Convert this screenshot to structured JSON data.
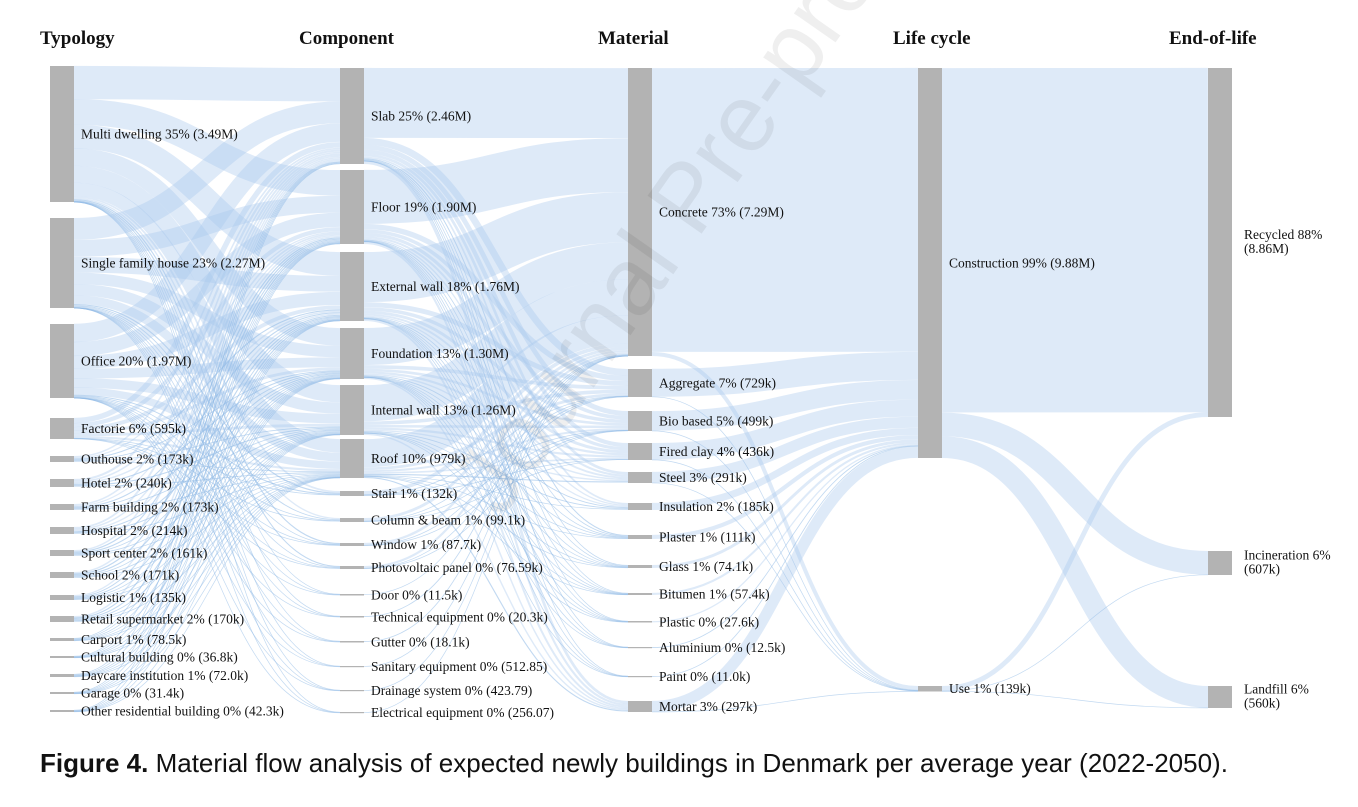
{
  "caption": {
    "label": "Figure 4.",
    "text": " Material flow analysis of expected newly buildings in Denmark per average year (2022-2050)."
  },
  "watermark": "Journal Pre-proof",
  "chart_data": {
    "type": "sankey",
    "columns": [
      {
        "header": "Typology",
        "nodes": [
          {
            "label": "Multi dwelling 35% (3.49M)",
            "value": 3490000
          },
          {
            "label": "Single family house 23% (2.27M)",
            "value": 2270000
          },
          {
            "label": "Office 20% (1.97M)",
            "value": 1970000
          },
          {
            "label": "Factorie 6% (595k)",
            "value": 595000
          },
          {
            "label": "Outhouse 2% (173k)",
            "value": 173000
          },
          {
            "label": "Hotel 2% (240k)",
            "value": 240000
          },
          {
            "label": "Farm building 2% (173k)",
            "value": 173000
          },
          {
            "label": "Hospital 2% (214k)",
            "value": 214000
          },
          {
            "label": "Sport center 2% (161k)",
            "value": 161000
          },
          {
            "label": "School 2% (171k)",
            "value": 171000
          },
          {
            "label": "Logistic 1% (135k)",
            "value": 135000
          },
          {
            "label": "Retail supermarket 2% (170k)",
            "value": 170000
          },
          {
            "label": "Carport 1% (78.5k)",
            "value": 78500
          },
          {
            "label": "Cultural building 0% (36.8k)",
            "value": 36800
          },
          {
            "label": "Daycare institution 1% (72.0k)",
            "value": 72000
          },
          {
            "label": "Garage 0% (31.4k)",
            "value": 31400
          },
          {
            "label": "Other residential building 0% (42.3k)",
            "value": 42300
          }
        ]
      },
      {
        "header": "Component",
        "nodes": [
          {
            "label": "Slab 25% (2.46M)",
            "value": 2460000
          },
          {
            "label": "Floor 19% (1.90M)",
            "value": 1900000
          },
          {
            "label": "External wall 18% (1.76M)",
            "value": 1760000
          },
          {
            "label": "Foundation 13% (1.30M)",
            "value": 1300000
          },
          {
            "label": "Internal wall 13% (1.26M)",
            "value": 1260000
          },
          {
            "label": "Roof 10% (979k)",
            "value": 979000
          },
          {
            "label": "Stair 1% (132k)",
            "value": 132000
          },
          {
            "label": "Column & beam 1% (99.1k)",
            "value": 99100
          },
          {
            "label": "Window 1% (87.7k)",
            "value": 87700
          },
          {
            "label": "Photovoltaic panel 0% (76.59k)",
            "value": 76590
          },
          {
            "label": "Door 0% (11.5k)",
            "value": 11500
          },
          {
            "label": "Technical equipment 0% (20.3k)",
            "value": 20300
          },
          {
            "label": "Gutter 0% (18.1k)",
            "value": 18100
          },
          {
            "label": "Sanitary equipment 0% (512.85)",
            "value": 512.85
          },
          {
            "label": "Drainage system 0% (423.79)",
            "value": 423.79
          },
          {
            "label": "Electrical equipment 0% (256.07)",
            "value": 256.07
          }
        ]
      },
      {
        "header": "Material",
        "nodes": [
          {
            "label": "Concrete 73% (7.29M)",
            "value": 7290000
          },
          {
            "label": "Aggregate 7% (729k)",
            "value": 729000
          },
          {
            "label": "Bio based 5% (499k)",
            "value": 499000
          },
          {
            "label": "Fired clay 4% (436k)",
            "value": 436000
          },
          {
            "label": "Steel 3% (291k)",
            "value": 291000
          },
          {
            "label": "Insulation 2% (185k)",
            "value": 185000
          },
          {
            "label": "Plaster 1% (111k)",
            "value": 111000
          },
          {
            "label": "Glass 1% (74.1k)",
            "value": 74100
          },
          {
            "label": "Bitumen 1% (57.4k)",
            "value": 57400
          },
          {
            "label": "Plastic 0% (27.6k)",
            "value": 27600
          },
          {
            "label": "Aluminium 0% (12.5k)",
            "value": 12500
          },
          {
            "label": "Paint 0% (11.0k)",
            "value": 11000
          },
          {
            "label": "Mortar 3% (297k)",
            "value": 297000
          }
        ]
      },
      {
        "header": "Life cycle",
        "nodes": [
          {
            "label": "Construction 99% (9.88M)",
            "value": 9880000
          },
          {
            "label": "Use 1% (139k)",
            "value": 139000
          }
        ]
      },
      {
        "header": "End-of-life",
        "nodes": [
          {
            "label": "Recycled 88%",
            "label2": "(8.86M)",
            "value": 8860000
          },
          {
            "label": "Incineration 6%",
            "label2": "(607k)",
            "value": 607000
          },
          {
            "label": "Landfill 6%",
            "label2": "(560k)",
            "value": 560000
          }
        ]
      }
    ],
    "link_color": "#a9c9ec",
    "node_color": "#b3b3b3"
  }
}
